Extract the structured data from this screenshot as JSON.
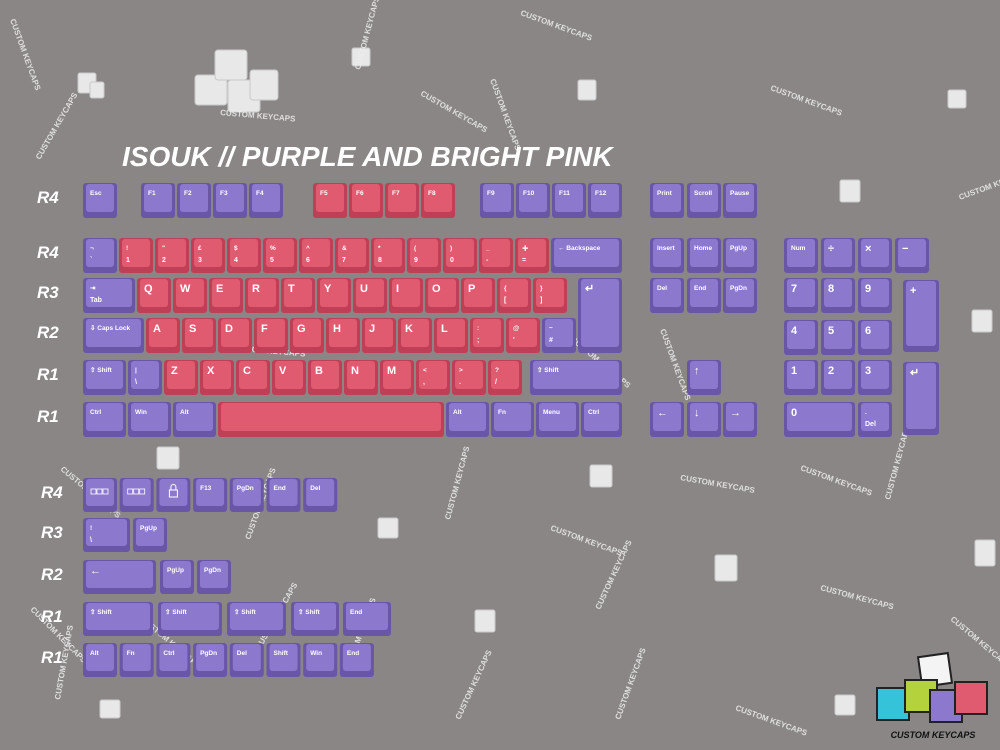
{
  "title": "ISOUK // PURPLE AND BRIGHT PINK",
  "watermark": "CUSTOM KEYCAPS",
  "logo_text": "CUSTOM KEYCAPS",
  "colors": {
    "purple": {
      "face": "#8c79cd",
      "side": "#6a56a6"
    },
    "pink": {
      "face": "#e05a70",
      "side": "#bf3f57"
    }
  },
  "main": {
    "row_labels": [
      "R4",
      "R4",
      "R3",
      "R2",
      "R1",
      "R1"
    ],
    "rows": [
      [
        {
          "label": "Esc"
        },
        {
          "label": "F1"
        },
        {
          "label": "F2"
        },
        {
          "label": "F3"
        },
        {
          "label": "F4"
        },
        {
          "label": "F5",
          "color": "pink"
        },
        {
          "label": "F6",
          "color": "pink"
        },
        {
          "label": "F7",
          "color": "pink"
        },
        {
          "label": "F8",
          "color": "pink"
        },
        {
          "label": "F9"
        },
        {
          "label": "F10"
        },
        {
          "label": "F11"
        },
        {
          "label": "F12"
        }
      ],
      [
        {
          "label": "¬",
          "sub": "`"
        },
        {
          "label": "!",
          "sub": "1",
          "color": "pink"
        },
        {
          "label": "\"",
          "sub": "2",
          "color": "pink"
        },
        {
          "label": "£",
          "sub": "3",
          "color": "pink"
        },
        {
          "label": "$",
          "sub": "4",
          "color": "pink"
        },
        {
          "label": "%",
          "sub": "5",
          "color": "pink"
        },
        {
          "label": "^",
          "sub": "6",
          "color": "pink"
        },
        {
          "label": "&",
          "sub": "7",
          "color": "pink"
        },
        {
          "label": "*",
          "sub": "8",
          "color": "pink"
        },
        {
          "label": "(",
          "sub": "9",
          "color": "pink"
        },
        {
          "label": ")",
          "sub": "0",
          "color": "pink"
        },
        {
          "label": "_",
          "sub": "-",
          "color": "pink"
        },
        {
          "label": "+",
          "sub": "=",
          "color": "pink"
        },
        {
          "label": "← Backspace"
        }
      ],
      [
        {
          "label": "⇥",
          "sub": "Tab"
        },
        {
          "label": "Q",
          "color": "pink"
        },
        {
          "label": "W",
          "color": "pink"
        },
        {
          "label": "E",
          "color": "pink"
        },
        {
          "label": "R",
          "color": "pink"
        },
        {
          "label": "T",
          "color": "pink"
        },
        {
          "label": "Y",
          "color": "pink"
        },
        {
          "label": "U",
          "color": "pink"
        },
        {
          "label": "I",
          "color": "pink"
        },
        {
          "label": "O",
          "color": "pink"
        },
        {
          "label": "P",
          "color": "pink"
        },
        {
          "label": "{",
          "sub": "[",
          "color": "pink"
        },
        {
          "label": "}",
          "sub": "]",
          "color": "pink"
        },
        {
          "label": "↵"
        }
      ],
      [
        {
          "label": "⇩ Caps Lock"
        },
        {
          "label": "A",
          "color": "pink"
        },
        {
          "label": "S",
          "color": "pink"
        },
        {
          "label": "D",
          "color": "pink"
        },
        {
          "label": "F",
          "color": "pink"
        },
        {
          "label": "G",
          "color": "pink"
        },
        {
          "label": "H",
          "color": "pink"
        },
        {
          "label": "J",
          "color": "pink"
        },
        {
          "label": "K",
          "color": "pink"
        },
        {
          "label": "L",
          "color": "pink"
        },
        {
          "label": ":",
          "sub": ";",
          "color": "pink"
        },
        {
          "label": "@",
          "sub": "'",
          "color": "pink"
        },
        {
          "label": "~",
          "sub": "#"
        }
      ],
      [
        {
          "label": "⇧ Shift"
        },
        {
          "label": "|",
          "sub": "\\"
        },
        {
          "label": "Z",
          "color": "pink"
        },
        {
          "label": "X",
          "color": "pink"
        },
        {
          "label": "C",
          "color": "pink"
        },
        {
          "label": "V",
          "color": "pink"
        },
        {
          "label": "B",
          "color": "pink"
        },
        {
          "label": "N",
          "color": "pink"
        },
        {
          "label": "M",
          "color": "pink"
        },
        {
          "label": "<",
          "sub": ",",
          "color": "pink"
        },
        {
          "label": ">",
          "sub": ".",
          "color": "pink"
        },
        {
          "label": "?",
          "sub": "/",
          "color": "pink"
        },
        {
          "label": "⇧ Shift"
        }
      ],
      [
        {
          "label": "Ctrl"
        },
        {
          "label": "Win"
        },
        {
          "label": "Alt"
        },
        {
          "color": "pink"
        },
        {
          "label": "Alt"
        },
        {
          "label": "Fn"
        },
        {
          "label": "Menu"
        },
        {
          "label": "Ctrl"
        }
      ]
    ]
  },
  "nav": [
    {
      "label": "Print"
    },
    {
      "label": "Scroll"
    },
    {
      "label": "Pause"
    },
    {
      "label": "Insert"
    },
    {
      "label": "Home"
    },
    {
      "label": "PgUp"
    },
    {
      "label": "Del"
    },
    {
      "label": "End"
    },
    {
      "label": "PgDn"
    },
    {
      "label": "↑"
    },
    {
      "label": "←"
    },
    {
      "label": "↓"
    },
    {
      "label": "→"
    }
  ],
  "numpad": [
    {
      "label": "Num"
    },
    {
      "label": "÷"
    },
    {
      "label": "×"
    },
    {
      "label": "−"
    },
    {
      "label": "7"
    },
    {
      "label": "8"
    },
    {
      "label": "9"
    },
    {
      "label": "+"
    },
    {
      "label": "4"
    },
    {
      "label": "5"
    },
    {
      "label": "6"
    },
    {
      "label": "1"
    },
    {
      "label": "2"
    },
    {
      "label": "3"
    },
    {
      "label": "↵"
    },
    {
      "label": "0"
    },
    {
      "label": ".",
      "sub": "Del"
    }
  ],
  "extras": {
    "row_labels": [
      "R4",
      "R3",
      "R2",
      "R1",
      "R1"
    ],
    "rows": [
      [
        {
          "icon": "keys"
        },
        {
          "icon": "keys"
        },
        {
          "icon": "lock"
        },
        {
          "label": "F13"
        },
        {
          "label": "PgDn"
        },
        {
          "label": "End"
        },
        {
          "label": "Del"
        }
      ],
      [
        {
          "label": "!",
          "sub": "\\"
        },
        {
          "label": "PgUp"
        }
      ],
      [
        {
          "label": "←"
        },
        {
          "label": "PgUp"
        },
        {
          "label": "PgDn"
        }
      ],
      [
        {
          "label": "⇧ Shift"
        },
        {
          "label": "⇧ Shift"
        },
        {
          "label": "⇧ Shift"
        },
        {
          "label": "⇧ Shift"
        },
        {
          "label": "End"
        }
      ],
      [
        {
          "label": "Alt"
        },
        {
          "label": "Fn"
        },
        {
          "label": "Ctrl"
        },
        {
          "label": "PgDn"
        },
        {
          "label": "Del"
        },
        {
          "label": "Shift"
        },
        {
          "label": "Win"
        },
        {
          "label": "End"
        }
      ]
    ]
  }
}
